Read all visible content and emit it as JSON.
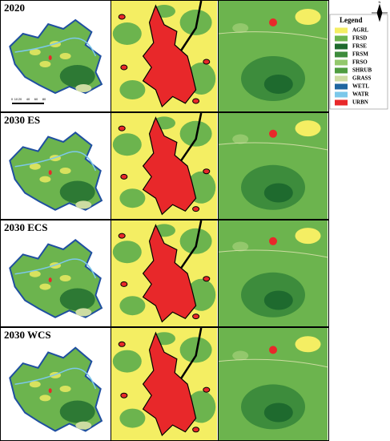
{
  "row_labels": [
    "2020",
    "2030 ES",
    "2030 ECS",
    "2030 WCS"
  ],
  "legend": {
    "title": "Legend",
    "north": "N",
    "items": [
      {
        "label": "AGRL",
        "color": "#f4ee63"
      },
      {
        "label": "FRSD",
        "color": "#6cb44e"
      },
      {
        "label": "FRSE",
        "color": "#1e6a2e"
      },
      {
        "label": "FRSM",
        "color": "#3d8c3c"
      },
      {
        "label": "FRSO",
        "color": "#93c86c"
      },
      {
        "label": "SHRUB",
        "color": "#4f9c40"
      },
      {
        "label": "GRASS",
        "color": "#cddca2"
      },
      {
        "label": "WETL",
        "color": "#1f66a0"
      },
      {
        "label": "WATR",
        "color": "#7cc8ea"
      },
      {
        "label": "URBN",
        "color": "#e8282a"
      }
    ]
  },
  "scale_bar": [
    "0",
    "10",
    "20",
    "40",
    "60",
    "80"
  ]
}
